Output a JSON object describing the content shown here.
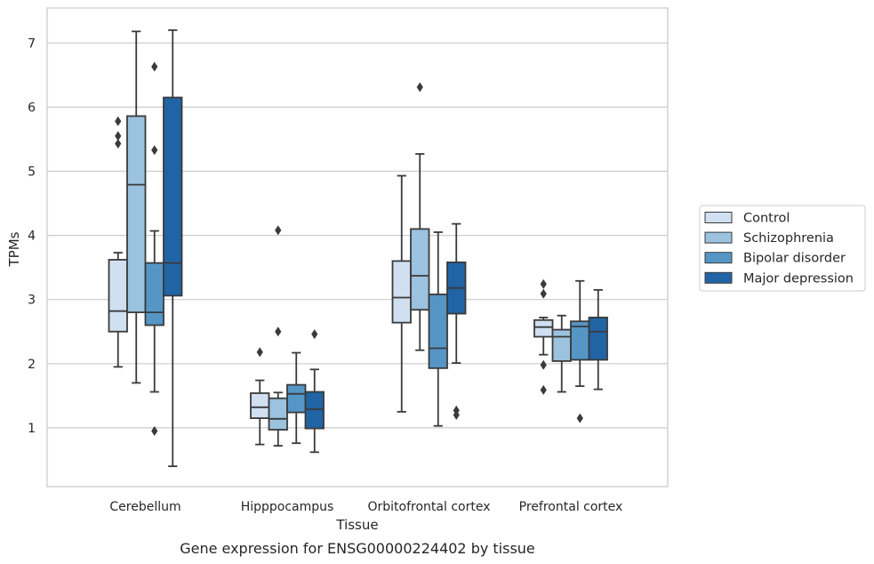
{
  "chart_data": {
    "type": "box",
    "caption": "Gene expression for ENSG00000224402 by tissue",
    "xlabel": "Tissue",
    "ylabel": "TPMs",
    "ylim": [
      0.1,
      7.55
    ],
    "yticks": [
      1,
      2,
      3,
      4,
      5,
      6,
      7
    ],
    "grid": "horizontal",
    "legend_position": "right",
    "categories": [
      "Cerebellum",
      "Hipppocampus",
      "Orbitofrontal cortex",
      "Prefrontal cortex"
    ],
    "series": [
      {
        "name": "Control",
        "color": "#d0e0f1",
        "boxes": [
          {
            "min": 1.95,
            "q1": 2.5,
            "median": 2.82,
            "q3": 3.62,
            "max": 3.73,
            "outliers": [
              5.78,
              5.55,
              5.43
            ]
          },
          {
            "min": 0.74,
            "q1": 1.15,
            "median": 1.32,
            "q3": 1.54,
            "max": 1.74,
            "outliers": [
              2.18
            ]
          },
          {
            "min": 1.25,
            "q1": 2.64,
            "median": 3.03,
            "q3": 3.6,
            "max": 4.93,
            "outliers": []
          },
          {
            "min": 2.14,
            "q1": 2.42,
            "median": 2.57,
            "q3": 2.68,
            "max": 2.72,
            "outliers": [
              3.24,
              3.09,
              1.98,
              1.59
            ]
          }
        ]
      },
      {
        "name": "Schizophrenia",
        "color": "#9bc2de",
        "boxes": [
          {
            "min": 1.7,
            "q1": 2.8,
            "median": 4.79,
            "q3": 5.86,
            "max": 7.18,
            "outliers": []
          },
          {
            "min": 0.72,
            "q1": 0.97,
            "median": 1.14,
            "q3": 1.46,
            "max": 1.55,
            "outliers": [
              4.08,
              2.5
            ]
          },
          {
            "min": 2.21,
            "q1": 2.84,
            "median": 3.37,
            "q3": 4.1,
            "max": 5.27,
            "outliers": [
              6.31
            ]
          },
          {
            "min": 1.56,
            "q1": 2.04,
            "median": 2.42,
            "q3": 2.53,
            "max": 2.75,
            "outliers": []
          }
        ]
      },
      {
        "name": "Bipolar disorder",
        "color": "#5596c6",
        "boxes": [
          {
            "min": 1.56,
            "q1": 2.6,
            "median": 2.8,
            "q3": 3.57,
            "max": 4.07,
            "outliers": [
              6.63,
              5.33,
              0.95
            ]
          },
          {
            "min": 0.76,
            "q1": 1.24,
            "median": 1.53,
            "q3": 1.67,
            "max": 2.17,
            "outliers": []
          },
          {
            "min": 1.03,
            "q1": 1.93,
            "median": 2.24,
            "q3": 3.08,
            "max": 4.05,
            "outliers": []
          },
          {
            "min": 1.65,
            "q1": 2.06,
            "median": 2.58,
            "q3": 2.66,
            "max": 3.29,
            "outliers": [
              1.15
            ]
          }
        ]
      },
      {
        "name": "Major depression",
        "color": "#2064a6",
        "boxes": [
          {
            "min": 0.4,
            "q1": 3.06,
            "median": 3.57,
            "q3": 6.15,
            "max": 7.2,
            "outliers": []
          },
          {
            "min": 0.62,
            "q1": 0.99,
            "median": 1.29,
            "q3": 1.56,
            "max": 1.91,
            "outliers": [
              2.46
            ]
          },
          {
            "min": 2.01,
            "q1": 2.78,
            "median": 3.18,
            "q3": 3.58,
            "max": 4.18,
            "outliers": [
              1.27,
              1.2
            ]
          },
          {
            "min": 1.6,
            "q1": 2.06,
            "median": 2.5,
            "q3": 2.72,
            "max": 3.15,
            "outliers": []
          }
        ]
      }
    ]
  },
  "colors": {
    "frame": "#cccccc",
    "grid": "#cccccc",
    "line": "#3a3a3a",
    "text": "#262626"
  }
}
